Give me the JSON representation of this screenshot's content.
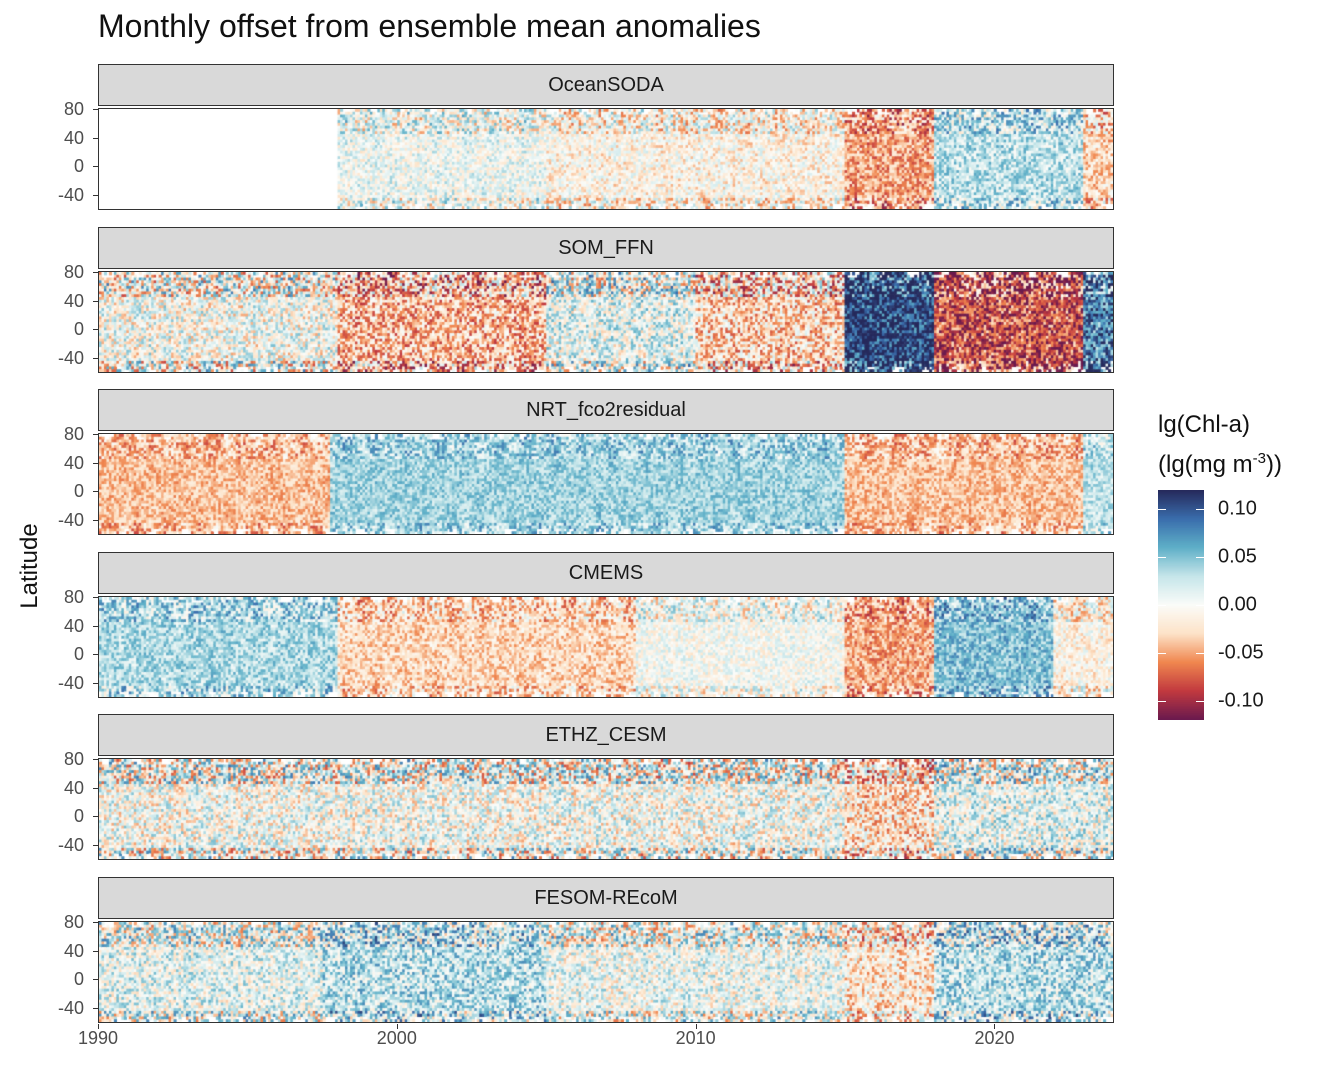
{
  "chart_data": {
    "type": "heatmap",
    "title": "Monthly offset from ensemble mean anomalies",
    "ylabel": "Latitude",
    "xlabel": "",
    "x_ticks": [
      "1990",
      "2000",
      "2010",
      "2020"
    ],
    "xlim": [
      1990,
      2024
    ],
    "y_ticks": [
      "80",
      "40",
      "0",
      "-40"
    ],
    "ylim": [
      -60,
      80
    ],
    "legend": {
      "title_line1": "lg(Chl-a)",
      "title_line2": "(lg(mg m",
      "title_sup": "-3",
      "title_end": "))",
      "ticks": [
        "0.10",
        "0.05",
        "0.00",
        "-0.05",
        "-0.10"
      ],
      "tick_values": [
        0.1,
        0.05,
        0.0,
        -0.05,
        -0.1
      ],
      "range": [
        -0.12,
        0.12
      ],
      "colors": [
        "#6b1a4e",
        "#c23a3f",
        "#f0874f",
        "#fde3c8",
        "#fbfcf9",
        "#c6e6ea",
        "#5fb0c8",
        "#3a6ead",
        "#262a5c"
      ],
      "placement": "right"
    },
    "panels": [
      {
        "name": "OceanSODA",
        "data_start_year": 1998,
        "periods": [
          {
            "start": 1998,
            "end": 2005,
            "mean": 0.005
          },
          {
            "start": 2005,
            "end": 2015,
            "mean": -0.01
          },
          {
            "start": 2015,
            "end": 2018,
            "mean": -0.05
          },
          {
            "start": 2018,
            "end": 2023,
            "mean": 0.03
          },
          {
            "start": 2023,
            "end": 2024,
            "mean": -0.03
          }
        ],
        "noise": 0.035
      },
      {
        "name": "SOM_FFN",
        "data_start_year": 1990,
        "periods": [
          {
            "start": 1990,
            "end": 1998,
            "mean": 0.0
          },
          {
            "start": 1998,
            "end": 2005,
            "mean": -0.04
          },
          {
            "start": 2005,
            "end": 2010,
            "mean": 0.01
          },
          {
            "start": 2010,
            "end": 2015,
            "mean": -0.03
          },
          {
            "start": 2015,
            "end": 2018,
            "mean": 0.11
          },
          {
            "start": 2018,
            "end": 2023,
            "mean": -0.08
          },
          {
            "start": 2023,
            "end": 2024,
            "mean": 0.08
          }
        ],
        "noise": 0.05
      },
      {
        "name": "NRT_fco2residual",
        "data_start_year": 1990,
        "periods": [
          {
            "start": 1990,
            "end": 1997.7,
            "mean": -0.04
          },
          {
            "start": 1997.7,
            "end": 2015,
            "mean": 0.04
          },
          {
            "start": 2015,
            "end": 2023,
            "mean": -0.04
          },
          {
            "start": 2023,
            "end": 2024,
            "mean": 0.03
          }
        ],
        "noise": 0.025
      },
      {
        "name": "CMEMS",
        "data_start_year": 1990,
        "periods": [
          {
            "start": 1990,
            "end": 1998,
            "mean": 0.035
          },
          {
            "start": 1998,
            "end": 2008,
            "mean": -0.03
          },
          {
            "start": 2008,
            "end": 2015,
            "mean": 0.0
          },
          {
            "start": 2015,
            "end": 2018,
            "mean": -0.05
          },
          {
            "start": 2018,
            "end": 2022,
            "mean": 0.05
          },
          {
            "start": 2022,
            "end": 2024,
            "mean": -0.01
          }
        ],
        "noise": 0.03
      },
      {
        "name": "ETHZ_CESM",
        "data_start_year": 1990,
        "periods": [
          {
            "start": 1990,
            "end": 2015,
            "mean": 0.0
          },
          {
            "start": 2015,
            "end": 2018,
            "mean": -0.025
          },
          {
            "start": 2018,
            "end": 2024,
            "mean": 0.01
          }
        ],
        "noise": 0.05
      },
      {
        "name": "FESOM-REcoM",
        "data_start_year": 1990,
        "periods": [
          {
            "start": 1990,
            "end": 1997.5,
            "mean": 0.01
          },
          {
            "start": 1997.5,
            "end": 2005,
            "mean": 0.03
          },
          {
            "start": 2005,
            "end": 2015,
            "mean": 0.005
          },
          {
            "start": 2015,
            "end": 2018,
            "mean": -0.02
          },
          {
            "start": 2018,
            "end": 2024,
            "mean": 0.03
          }
        ],
        "noise": 0.045
      }
    ]
  }
}
